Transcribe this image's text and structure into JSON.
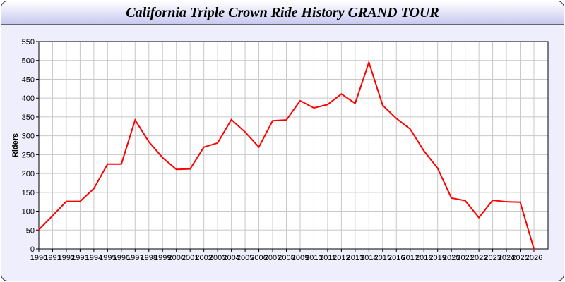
{
  "chart_data": {
    "type": "line",
    "title": "California Triple Crown Ride History GRAND TOUR",
    "xlabel": "",
    "ylabel": "Riders",
    "x": [
      1990,
      1991,
      1992,
      1993,
      1994,
      1995,
      1996,
      1997,
      1998,
      1999,
      2000,
      2001,
      2002,
      2003,
      2004,
      2005,
      2006,
      2007,
      2008,
      2009,
      2010,
      2011,
      2012,
      2013,
      2014,
      2015,
      2016,
      2017,
      2018,
      2019,
      2020,
      2021,
      2022,
      2023,
      2024,
      2025,
      2026
    ],
    "values": [
      51,
      88,
      126,
      126,
      160,
      225,
      225,
      342,
      284,
      242,
      211,
      212,
      270,
      281,
      343,
      310,
      270,
      340,
      342,
      393,
      374,
      383,
      411,
      386,
      495,
      381,
      346,
      318,
      260,
      214,
      135,
      128,
      83,
      129,
      125,
      124,
      0
    ],
    "ylim": [
      0,
      550
    ],
    "yticks": [
      0,
      50,
      100,
      150,
      200,
      250,
      300,
      350,
      400,
      450,
      500,
      550
    ],
    "grid": true,
    "line_color": "#ff0000"
  }
}
